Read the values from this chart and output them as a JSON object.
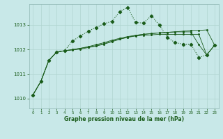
{
  "title": "Graphe pression niveau de la mer (hPa)",
  "bg_color": "#c8e8e8",
  "grid_color": "#b0d4d0",
  "line_color": "#1a5c1a",
  "xlim": [
    -0.5,
    23.5
  ],
  "ylim": [
    1009.6,
    1013.85
  ],
  "xticks": [
    0,
    1,
    2,
    3,
    4,
    5,
    6,
    7,
    8,
    9,
    10,
    11,
    12,
    13,
    14,
    15,
    16,
    17,
    18,
    19,
    20,
    21,
    22,
    23
  ],
  "yticks": [
    1010,
    1011,
    1012,
    1013
  ],
  "main_series": [
    1010.15,
    1010.7,
    1011.55,
    1011.9,
    1011.95,
    1012.35,
    1012.55,
    1012.75,
    1012.9,
    1013.05,
    1013.15,
    1013.55,
    1013.72,
    1013.1,
    1013.08,
    1013.38,
    1013.0,
    1012.5,
    1012.28,
    1012.22,
    1012.22,
    1011.68,
    1011.78,
    1012.18
  ],
  "smooth1": [
    1010.15,
    1010.7,
    1011.55,
    1011.9,
    1011.95,
    1011.98,
    1012.02,
    1012.08,
    1012.14,
    1012.22,
    1012.32,
    1012.42,
    1012.5,
    1012.58,
    1012.62,
    1012.65,
    1012.68,
    1012.7,
    1012.72,
    1012.75,
    1012.78,
    1012.78,
    1012.8,
    1012.18
  ],
  "smooth2": [
    1010.15,
    1010.7,
    1011.55,
    1011.9,
    1011.95,
    1012.0,
    1012.05,
    1012.12,
    1012.2,
    1012.28,
    1012.38,
    1012.46,
    1012.53,
    1012.58,
    1012.62,
    1012.65,
    1012.68,
    1012.7,
    1012.72,
    1012.72,
    1012.72,
    1012.2,
    1011.78,
    1012.18
  ],
  "smooth3": [
    1010.15,
    1010.7,
    1011.55,
    1011.9,
    1011.95,
    1012.0,
    1012.05,
    1012.1,
    1012.16,
    1012.24,
    1012.34,
    1012.43,
    1012.5,
    1012.55,
    1012.58,
    1012.6,
    1012.62,
    1012.62,
    1012.62,
    1012.62,
    1012.62,
    1012.62,
    1011.78,
    1012.18
  ]
}
